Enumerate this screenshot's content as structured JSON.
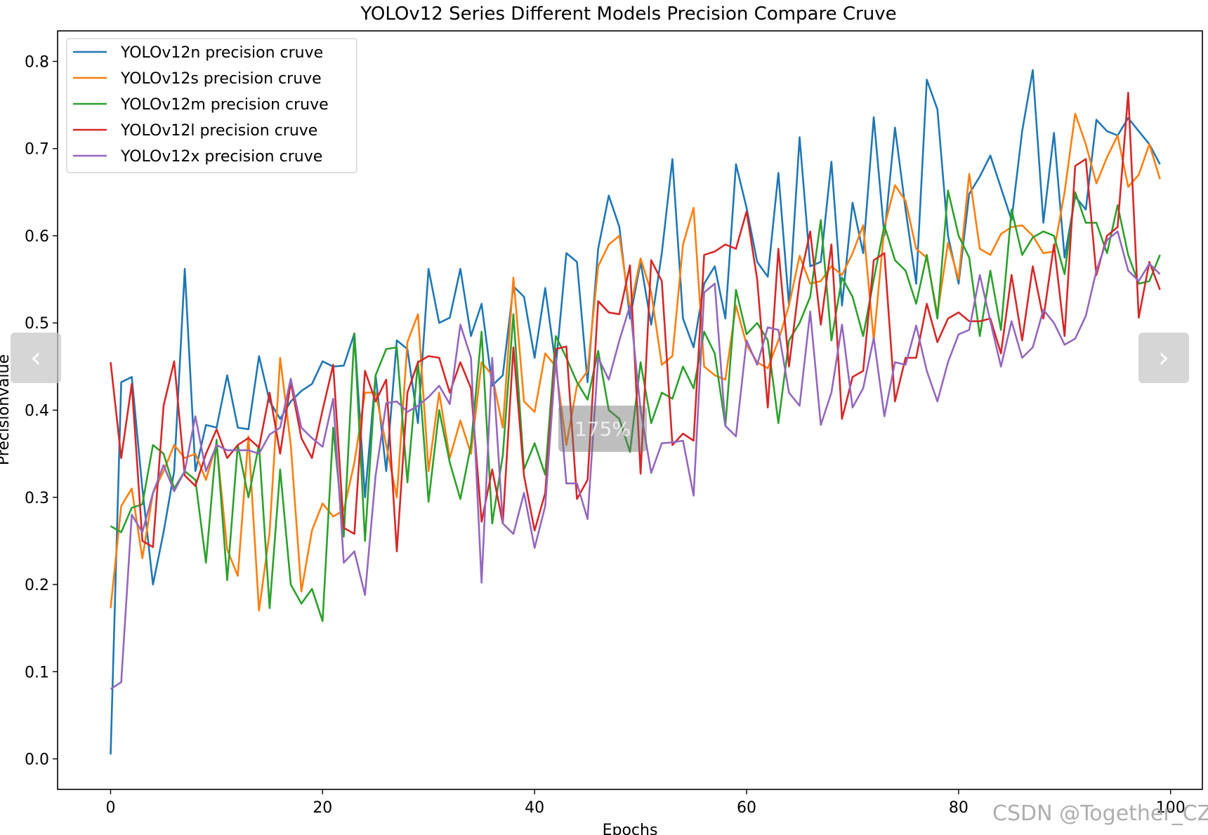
{
  "chart_data": {
    "type": "line",
    "title": "YOLOv12 Series Different Models Precision Compare Cruve",
    "xlabel": "Epochs",
    "ylabel": "Precisionvalue",
    "xlim": [
      -5,
      103
    ],
    "ylim": [
      -0.035,
      0.835
    ],
    "xticks": [
      0,
      20,
      40,
      60,
      80,
      100
    ],
    "yticks": [
      0.0,
      0.1,
      0.2,
      0.3,
      0.4,
      0.5,
      0.6,
      0.7,
      0.8
    ],
    "legend_position": "upper-left",
    "grid": false,
    "series": [
      {
        "name": "YOLOv12n precision cruve",
        "color": "#1f77b4",
        "values": [
          0.005,
          0.432,
          0.438,
          0.31,
          0.2,
          0.26,
          0.33,
          0.562,
          0.33,
          0.383,
          0.38,
          0.44,
          0.38,
          0.378,
          0.462,
          0.41,
          0.39,
          0.41,
          0.422,
          0.43,
          0.456,
          0.45,
          0.451,
          0.488,
          0.3,
          0.44,
          0.33,
          0.48,
          0.47,
          0.385,
          0.562,
          0.5,
          0.506,
          0.562,
          0.485,
          0.522,
          0.428,
          0.44,
          0.542,
          0.53,
          0.46,
          0.54,
          0.45,
          0.58,
          0.57,
          0.432,
          0.585,
          0.646,
          0.61,
          0.505,
          0.57,
          0.498,
          0.58,
          0.688,
          0.505,
          0.472,
          0.545,
          0.565,
          0.505,
          0.682,
          0.632,
          0.57,
          0.553,
          0.672,
          0.52,
          0.713,
          0.565,
          0.57,
          0.685,
          0.52,
          0.638,
          0.58,
          0.736,
          0.6,
          0.724,
          0.63,
          0.545,
          0.779,
          0.745,
          0.6,
          0.545,
          0.648,
          0.668,
          0.692,
          0.655,
          0.618,
          0.72,
          0.79,
          0.615,
          0.718,
          0.575,
          0.645,
          0.63,
          0.733,
          0.72,
          0.715,
          0.735,
          0.72,
          0.705,
          0.682
        ]
      },
      {
        "name": "YOLOv12s precision cruve",
        "color": "#ff7f0e",
        "values": [
          0.173,
          0.29,
          0.31,
          0.23,
          0.305,
          0.33,
          0.36,
          0.345,
          0.35,
          0.32,
          0.362,
          0.24,
          0.21,
          0.37,
          0.17,
          0.26,
          0.46,
          0.36,
          0.192,
          0.262,
          0.293,
          0.278,
          0.285,
          0.34,
          0.42,
          0.42,
          0.36,
          0.3,
          0.478,
          0.51,
          0.33,
          0.42,
          0.345,
          0.388,
          0.35,
          0.455,
          0.44,
          0.38,
          0.552,
          0.41,
          0.398,
          0.465,
          0.45,
          0.36,
          0.428,
          0.445,
          0.565,
          0.59,
          0.6,
          0.515,
          0.574,
          0.535,
          0.452,
          0.462,
          0.59,
          0.632,
          0.45,
          0.44,
          0.435,
          0.52,
          0.475,
          0.455,
          0.448,
          0.48,
          0.52,
          0.577,
          0.545,
          0.548,
          0.565,
          0.555,
          0.58,
          0.612,
          0.48,
          0.61,
          0.658,
          0.64,
          0.585,
          0.575,
          0.51,
          0.592,
          0.55,
          0.671,
          0.585,
          0.578,
          0.602,
          0.61,
          0.612,
          0.6,
          0.58,
          0.582,
          0.65,
          0.74,
          0.705,
          0.66,
          0.69,
          0.715,
          0.656,
          0.67,
          0.705,
          0.665
        ]
      },
      {
        "name": "YOLOv12m precision cruve",
        "color": "#2ca02c",
        "values": [
          0.267,
          0.26,
          0.288,
          0.292,
          0.36,
          0.35,
          0.31,
          0.33,
          0.32,
          0.225,
          0.366,
          0.205,
          0.36,
          0.3,
          0.36,
          0.173,
          0.332,
          0.2,
          0.178,
          0.195,
          0.158,
          0.38,
          0.255,
          0.488,
          0.25,
          0.44,
          0.47,
          0.472,
          0.317,
          0.456,
          0.295,
          0.4,
          0.34,
          0.298,
          0.36,
          0.49,
          0.27,
          0.348,
          0.51,
          0.332,
          0.362,
          0.326,
          0.485,
          0.46,
          0.432,
          0.412,
          0.468,
          0.4,
          0.39,
          0.352,
          0.455,
          0.385,
          0.42,
          0.413,
          0.45,
          0.425,
          0.49,
          0.465,
          0.382,
          0.538,
          0.487,
          0.5,
          0.48,
          0.385,
          0.48,
          0.5,
          0.53,
          0.618,
          0.48,
          0.552,
          0.53,
          0.485,
          0.55,
          0.612,
          0.572,
          0.56,
          0.522,
          0.578,
          0.505,
          0.652,
          0.6,
          0.575,
          0.485,
          0.56,
          0.492,
          0.63,
          0.578,
          0.598,
          0.605,
          0.6,
          0.556,
          0.65,
          0.615,
          0.615,
          0.58,
          0.635,
          0.578,
          0.545,
          0.548,
          0.578
        ]
      },
      {
        "name": "YOLOv12l precision cruve",
        "color": "#d62728",
        "values": [
          0.455,
          0.345,
          0.43,
          0.25,
          0.243,
          0.405,
          0.456,
          0.325,
          0.313,
          0.35,
          0.378,
          0.345,
          0.36,
          0.368,
          0.357,
          0.42,
          0.35,
          0.432,
          0.368,
          0.345,
          0.4,
          0.452,
          0.265,
          0.258,
          0.445,
          0.41,
          0.435,
          0.238,
          0.42,
          0.455,
          0.462,
          0.46,
          0.42,
          0.455,
          0.425,
          0.272,
          0.332,
          0.27,
          0.472,
          0.325,
          0.262,
          0.305,
          0.47,
          0.473,
          0.298,
          0.32,
          0.525,
          0.512,
          0.51,
          0.566,
          0.327,
          0.572,
          0.548,
          0.36,
          0.373,
          0.365,
          0.578,
          0.582,
          0.59,
          0.585,
          0.628,
          0.55,
          0.403,
          0.585,
          0.45,
          0.548,
          0.605,
          0.498,
          0.59,
          0.39,
          0.438,
          0.445,
          0.572,
          0.58,
          0.41,
          0.46,
          0.46,
          0.522,
          0.478,
          0.505,
          0.512,
          0.502,
          0.502,
          0.505,
          0.465,
          0.555,
          0.48,
          0.565,
          0.505,
          0.59,
          0.485,
          0.68,
          0.688,
          0.555,
          0.6,
          0.61,
          0.764,
          0.506,
          0.57,
          0.538
        ]
      },
      {
        "name": "YOLOv12x precision cruve",
        "color": "#9467bd",
        "values": [
          0.08,
          0.088,
          0.28,
          0.26,
          0.305,
          0.337,
          0.307,
          0.33,
          0.393,
          0.33,
          0.36,
          0.354,
          0.354,
          0.354,
          0.35,
          0.372,
          0.38,
          0.436,
          0.38,
          0.368,
          0.358,
          0.413,
          0.225,
          0.238,
          0.188,
          0.325,
          0.408,
          0.41,
          0.398,
          0.405,
          0.415,
          0.428,
          0.407,
          0.498,
          0.46,
          0.202,
          0.46,
          0.27,
          0.258,
          0.305,
          0.242,
          0.29,
          0.46,
          0.316,
          0.316,
          0.275,
          0.46,
          0.435,
          0.48,
          0.52,
          0.4,
          0.328,
          0.362,
          0.363,
          0.365,
          0.302,
          0.535,
          0.545,
          0.382,
          0.37,
          0.48,
          0.452,
          0.495,
          0.492,
          0.42,
          0.405,
          0.513,
          0.383,
          0.42,
          0.498,
          0.403,
          0.425,
          0.483,
          0.393,
          0.455,
          0.452,
          0.497,
          0.445,
          0.41,
          0.455,
          0.487,
          0.492,
          0.555,
          0.502,
          0.45,
          0.502,
          0.46,
          0.472,
          0.515,
          0.5,
          0.475,
          0.482,
          0.508,
          0.56,
          0.595,
          0.605,
          0.56,
          0.548,
          0.568,
          0.556
        ]
      }
    ]
  },
  "overlay": {
    "zoom_label": "175%",
    "prev_label": "‹",
    "next_label": "›",
    "watermark": "CSDN @Together_CZ"
  }
}
